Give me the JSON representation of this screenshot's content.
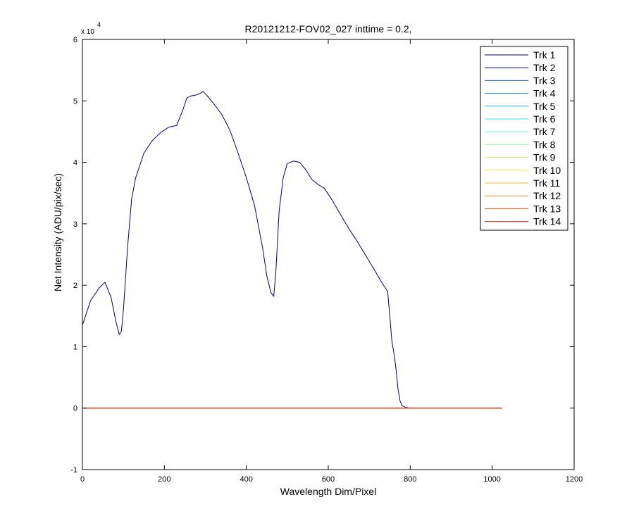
{
  "chart_data": {
    "type": "line",
    "title": "R20121212-FOV02_027 inttime = 0.2,",
    "xlabel": "Wavelength Dim/Pixel",
    "ylabel": "Net Intensity (ADU/pix/sec)",
    "y_exponent_label": {
      "base": "x 10",
      "exponent": "4"
    },
    "xlim": [
      0,
      1200
    ],
    "ylim": [
      -10000,
      60000
    ],
    "x_ticks": [
      0,
      200,
      400,
      600,
      800,
      1000,
      1200
    ],
    "x_tick_labels": [
      "0",
      "200",
      "400",
      "600",
      "800",
      "1000",
      "1200"
    ],
    "y_ticks": [
      -10000,
      0,
      10000,
      20000,
      30000,
      40000,
      50000,
      60000
    ],
    "y_tick_labels": [
      "-1",
      "0",
      "1",
      "2",
      "3",
      "4",
      "5",
      "6"
    ],
    "grid": false,
    "legend_position": "top-right",
    "series": [
      {
        "name": "Trk 1",
        "color": "#00007f",
        "x": [
          0,
          20,
          40,
          55,
          70,
          82,
          90,
          95,
          100,
          110,
          120,
          130,
          150,
          170,
          190,
          210,
          230,
          245,
          255,
          265,
          280,
          295,
          305,
          320,
          340,
          360,
          380,
          400,
          420,
          440,
          450,
          460,
          467,
          472,
          480,
          490,
          500,
          515,
          530,
          545,
          560,
          575,
          590,
          610,
          630,
          650,
          670,
          690,
          710,
          730,
          745,
          750,
          755,
          760,
          765,
          770,
          775,
          780,
          790,
          800,
          810,
          850,
          900,
          1024
        ],
        "y": [
          13500,
          17500,
          19500,
          20500,
          18000,
          14000,
          12000,
          12500,
          16000,
          26000,
          34000,
          37500,
          41500,
          43500,
          44800,
          45700,
          46000,
          48500,
          50500,
          50800,
          51000,
          51500,
          50800,
          49600,
          47800,
          45200,
          41500,
          37500,
          33000,
          26000,
          21500,
          18800,
          18200,
          22000,
          32000,
          37500,
          39800,
          40200,
          40000,
          38800,
          37200,
          36400,
          35800,
          33800,
          31500,
          29200,
          27200,
          25000,
          22800,
          20500,
          19000,
          15000,
          11000,
          9000,
          6500,
          3200,
          1200,
          400,
          100,
          0,
          0,
          0,
          0,
          0
        ]
      },
      {
        "name": "Trk 2",
        "color": "#00009f",
        "x": [
          0,
          1024
        ],
        "y": [
          0,
          0
        ]
      },
      {
        "name": "Trk 3",
        "color": "#1f5fbf",
        "x": [
          0,
          1024
        ],
        "y": [
          0,
          0
        ]
      },
      {
        "name": "Trk 4",
        "color": "#0f8fa0",
        "x": [
          0,
          1024
        ],
        "y": [
          0,
          0
        ]
      },
      {
        "name": "Trk 5",
        "color": "#1fbfcf",
        "x": [
          0,
          1024
        ],
        "y": [
          0,
          0
        ]
      },
      {
        "name": "Trk 6",
        "color": "#2fdfdf",
        "x": [
          0,
          1024
        ],
        "y": [
          0,
          0
        ]
      },
      {
        "name": "Trk 7",
        "color": "#6fefcf",
        "x": [
          0,
          1024
        ],
        "y": [
          0,
          0
        ]
      },
      {
        "name": "Trk 8",
        "color": "#9fef9f",
        "x": [
          0,
          1024
        ],
        "y": [
          0,
          0
        ]
      },
      {
        "name": "Trk 9",
        "color": "#cfef6f",
        "x": [
          0,
          1024
        ],
        "y": [
          0,
          0
        ]
      },
      {
        "name": "Trk 10",
        "color": "#efef3f",
        "x": [
          0,
          1024
        ],
        "y": [
          0,
          0
        ]
      },
      {
        "name": "Trk 11",
        "color": "#efbf1f",
        "x": [
          0,
          1024
        ],
        "y": [
          0,
          0
        ]
      },
      {
        "name": "Trk 12",
        "color": "#ef8f1f",
        "x": [
          0,
          1024
        ],
        "y": [
          0,
          0
        ]
      },
      {
        "name": "Trk 13",
        "color": "#e8501c",
        "x": [
          0,
          1024
        ],
        "y": [
          0,
          0
        ]
      },
      {
        "name": "Trk 14",
        "color": "#df1f1f",
        "x": [
          0,
          1024
        ],
        "y": [
          0,
          0
        ]
      }
    ]
  }
}
